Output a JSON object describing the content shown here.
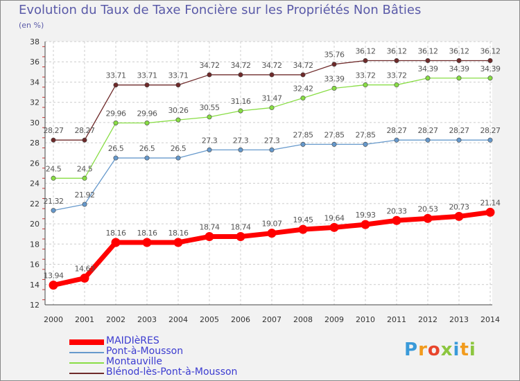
{
  "chart_data": {
    "type": "line",
    "title": "Evolution du Taux de Taxe Foncière sur les Propriétés Non Bâties",
    "subtitle": "(en %)",
    "xlabel": "",
    "ylabel": "(en %)",
    "ylim": [
      12,
      38
    ],
    "yticks": [
      12,
      14,
      16,
      18,
      20,
      22,
      24,
      26,
      28,
      30,
      32,
      34,
      36,
      38
    ],
    "grid": true,
    "legend_position": "bottom-left",
    "x": [
      "2000",
      "2001",
      "2002",
      "2003",
      "2004",
      "2005",
      "2006",
      "2007",
      "2008",
      "2009",
      "2010",
      "2011",
      "2012",
      "2013",
      "2014"
    ],
    "series": [
      {
        "name": "Blénod-lès-Pont-à-Mousson",
        "color": "#6e2a2a",
        "values": [
          28.27,
          28.27,
          33.71,
          33.71,
          33.71,
          34.72,
          34.72,
          34.72,
          34.72,
          35.76,
          36.12,
          36.12,
          36.12,
          36.12,
          36.12
        ],
        "labels": [
          "28.27",
          "28.27",
          "33.71",
          "33.71",
          "33.71",
          "34.72",
          "34.72",
          "34.72",
          "34.72",
          "35.76",
          "36.12",
          "36.12",
          "36.12",
          "36.12",
          "36.12"
        ]
      },
      {
        "name": "Montauville",
        "color": "#88dd44",
        "values": [
          24.5,
          24.5,
          29.96,
          29.96,
          30.26,
          30.55,
          31.16,
          31.47,
          32.42,
          33.39,
          33.72,
          33.72,
          34.39,
          34.39,
          34.39
        ],
        "labels": [
          "24.5",
          "24.5",
          "29.96",
          "29.96",
          "30.26",
          "30.55",
          "31.16",
          "31.47",
          "32.42",
          "33.39",
          "33.72",
          "33.72",
          "34.39",
          "34.39",
          "34.39"
        ]
      },
      {
        "name": "Pont-à-Mousson",
        "color": "#6699cc",
        "values": [
          21.32,
          21.92,
          26.5,
          26.5,
          26.5,
          27.3,
          27.3,
          27.3,
          27.85,
          27.85,
          27.85,
          28.27,
          28.27,
          28.27,
          28.27
        ],
        "labels": [
          "21.32",
          "21.92",
          "26.5",
          "26.5",
          "26.5",
          "27.3",
          "27.3",
          "27.3",
          "27.85",
          "27.85",
          "27.85",
          "28.27",
          "28.27",
          "28.27",
          "28.27"
        ]
      },
      {
        "name": "MAIDIèRES",
        "color": "#ff0000",
        "values": [
          13.94,
          14.63,
          18.16,
          18.16,
          18.16,
          18.74,
          18.74,
          19.07,
          19.45,
          19.64,
          19.93,
          20.33,
          20.53,
          20.73,
          21.14
        ],
        "labels": [
          "13.94",
          "14.63",
          "18.16",
          "18.16",
          "18.16",
          "18.74",
          "18.74",
          "19.07",
          "19.45",
          "19.64",
          "19.93",
          "20.33",
          "20.53",
          "20.73",
          "21.14"
        ]
      }
    ],
    "legend": [
      "MAIDIèRES",
      "Pont-à-Mousson",
      "Montauville",
      "Blénod-lès-Pont-à-Mousson"
    ]
  },
  "colors": {
    "legend_text": "#3b3bd0",
    "title_text": "#5a5aa8"
  },
  "logo": {
    "letters": [
      "P",
      "r",
      "o",
      "x",
      "i",
      "t",
      "i"
    ],
    "letter_colors": [
      "#3a9ad9",
      "#f29b1d",
      "#e8452c",
      "#8cc63f",
      "#3a9ad9",
      "#f29b1d",
      "#8cc63f"
    ]
  }
}
